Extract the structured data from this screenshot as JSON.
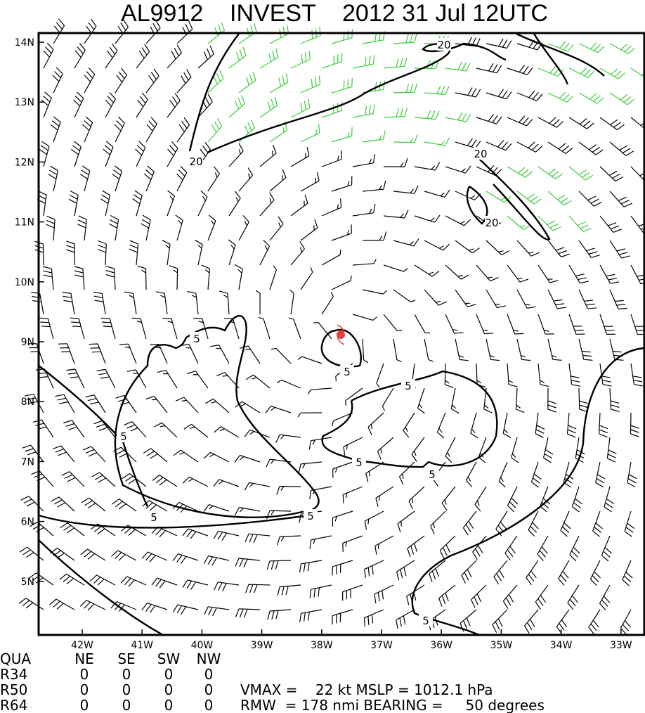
{
  "title": "AL9912    INVEST    2012 31 Jul 12UTC",
  "map": {
    "lat_labels": [
      "14N",
      "13N",
      "12N",
      "11N",
      "10N",
      "9N",
      "8N",
      "7N",
      "6N",
      "5N"
    ],
    "lon_labels": [
      "42W",
      "41W",
      "40W",
      "39W",
      "38W",
      "37W",
      "36W",
      "35W",
      "34W",
      "33W"
    ],
    "contour_labels": [
      "20",
      "20",
      "20",
      "20",
      "5",
      "5",
      "5",
      "5",
      "5",
      "5",
      "5",
      "5",
      "5"
    ]
  },
  "table": {
    "header": [
      "QUA",
      "NE",
      "SE",
      "SW",
      "NW"
    ],
    "rows": [
      [
        "R34",
        "0",
        "0",
        "0",
        "0"
      ],
      [
        "R50",
        "0",
        "0",
        "0",
        "0"
      ],
      [
        "R64",
        "0",
        "0",
        "0",
        "0"
      ]
    ]
  },
  "stats": {
    "line1": "VMAX =    22 kt MSLP = 1012.1 hPa",
    "line2": "RMW  = 178 nmi BEARING =     50 degrees"
  }
}
